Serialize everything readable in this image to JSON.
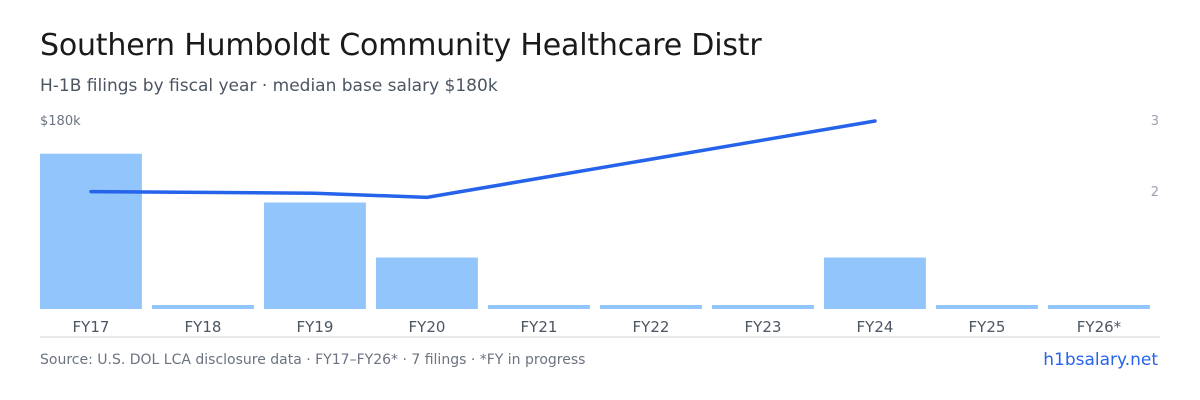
{
  "header": {
    "title": "Southern Humboldt Community Healthcare Distr",
    "subtitle": "H-1B filings by fiscal year · median base salary $180k"
  },
  "footer": {
    "source": "Source: U.S. DOL LCA disclosure data · FY17–FY26* · 7 filings · *FY in progress",
    "brand": "h1bsalary.net"
  },
  "colors": {
    "bar": "#93c5fd",
    "line": "#2563eb",
    "axis": "#d1d5db",
    "tick_text": "#4b5563",
    "right_tick_text": "#9ca3af"
  },
  "chart_data": {
    "type": "bar",
    "title": "Southern Humboldt Community Healthcare Distr",
    "subtitle": "H-1B filings by fiscal year · median base salary $180k",
    "categories": [
      "FY17",
      "FY18",
      "FY19",
      "FY20",
      "FY21",
      "FY22",
      "FY23",
      "FY24",
      "FY25",
      "FY26*"
    ],
    "series": [
      {
        "type": "bar",
        "axis": "left",
        "values": [
          175000,
          0,
          120000,
          58000,
          0,
          0,
          0,
          58000,
          0,
          0
        ]
      },
      {
        "type": "line",
        "axis": "right",
        "values": [
          2.15,
          null,
          2.13,
          2.08,
          null,
          null,
          null,
          3.0,
          null,
          null
        ]
      }
    ],
    "left_axis": {
      "tick_labels": [
        "$180k"
      ],
      "ylim": [
        0,
        213000
      ]
    },
    "right_axis": {
      "tick_labels": [
        "3",
        "2"
      ],
      "ylim": [
        0,
        3.0
      ]
    },
    "grid": false,
    "legend": "none"
  }
}
